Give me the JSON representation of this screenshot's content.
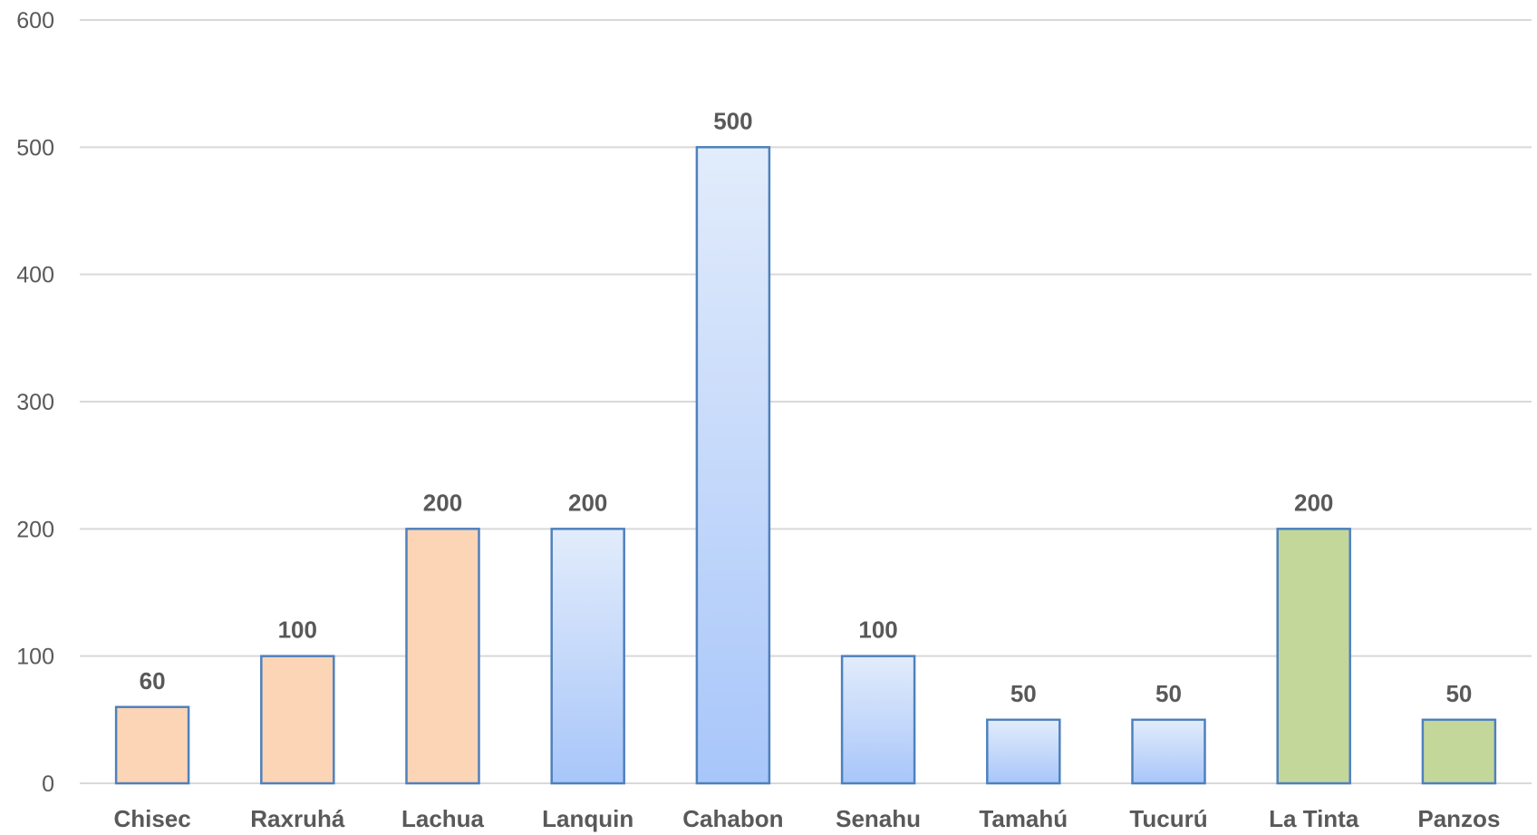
{
  "chart_data": {
    "type": "bar",
    "categories": [
      "Chisec",
      "Raxruhá",
      "Lachua",
      "Lanquin",
      "Cahabon",
      "Senahu",
      "Tamahú",
      "Tucurú",
      "La Tinta",
      "Panzos"
    ],
    "values": [
      60,
      100,
      200,
      200,
      500,
      100,
      50,
      50,
      200,
      50
    ],
    "value_labels": [
      "60",
      "100",
      "200",
      "200",
      "500",
      "100",
      "50",
      "50",
      "200",
      "50"
    ],
    "title": "",
    "xlabel": "",
    "ylabel": "",
    "ylim": [
      0,
      600
    ],
    "y_ticks": [
      0,
      100,
      200,
      300,
      400,
      500,
      600
    ],
    "y_tick_labels": [
      "0",
      "100",
      "200",
      "300",
      "400",
      "500",
      "600"
    ],
    "grid": true,
    "legend": "none",
    "bar_styles": [
      "peach",
      "peach",
      "peach",
      "blue-gradient",
      "blue-gradient",
      "blue-gradient",
      "blue-gradient",
      "blue-gradient",
      "green",
      "green"
    ],
    "colors": {
      "peach_fill": "#fbd5b5",
      "peach_stroke": "#4f81bd",
      "blue_top": "#e2ecfb",
      "blue_bottom": "#a8c6fa",
      "blue_stroke": "#4f81bd",
      "green_fill": "#c4d79b",
      "green_stroke": "#4f81bd",
      "grid": "#d9d9d9",
      "text": "#595959"
    }
  }
}
